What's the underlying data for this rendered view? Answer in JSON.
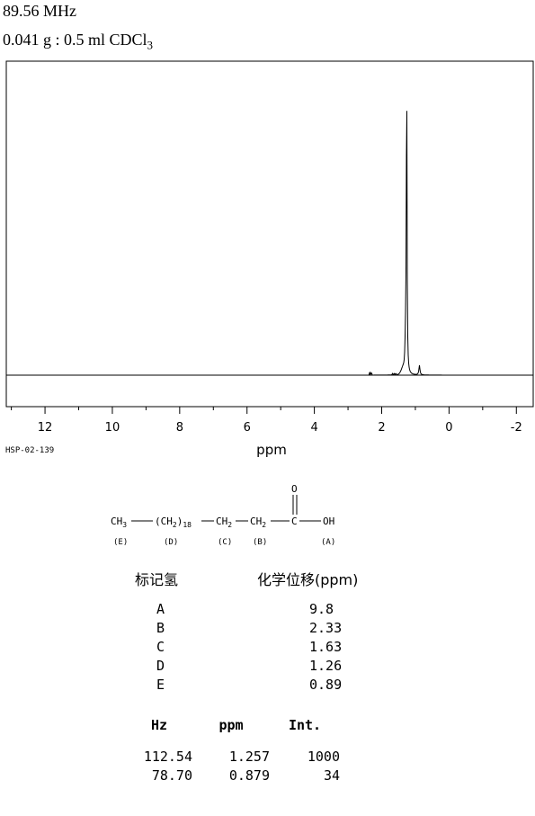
{
  "header": {
    "frequency": "89.56 MHz",
    "sample_main": "0.041 g : 0.5 ml CDCl",
    "sample_sub": "3"
  },
  "chart_data": {
    "type": "line",
    "xlabel": "ppm",
    "xlim": [
      13.15,
      -2.5
    ],
    "ylim": [
      0,
      1000
    ],
    "x_ticks": [
      12,
      10,
      8,
      6,
      4,
      2,
      0,
      -2
    ],
    "x_tick_labels": [
      "12",
      "10",
      "8",
      "6",
      "4",
      "2",
      "0",
      "-2"
    ],
    "peaks": [
      {
        "ppm": 1.257,
        "intensity": 1000
      },
      {
        "ppm": 0.879,
        "intensity": 34
      }
    ],
    "line_color": "#000000"
  },
  "spectrum_code": "HSP-02-139",
  "structure": {
    "formula_parts": [
      "CH3",
      "(CH2)18",
      "CH2",
      "CH2",
      "C",
      "OH",
      "O"
    ],
    "labels": [
      "(E)",
      "(D)",
      "(C)",
      "(B)",
      "(A)"
    ]
  },
  "assignments": {
    "header_label": "标记氢",
    "header_shift": "化学位移(ppm)",
    "rows": [
      {
        "label": "A",
        "shift": "9.8"
      },
      {
        "label": "B",
        "shift": "2.33"
      },
      {
        "label": "C",
        "shift": "1.63"
      },
      {
        "label": "D",
        "shift": "1.26"
      },
      {
        "label": "E",
        "shift": "0.89"
      }
    ]
  },
  "peak_table": {
    "headers": [
      "Hz",
      "ppm",
      "Int."
    ],
    "rows": [
      [
        "112.54",
        "1.257",
        "1000"
      ],
      [
        "78.70",
        "0.879",
        "34"
      ]
    ]
  }
}
